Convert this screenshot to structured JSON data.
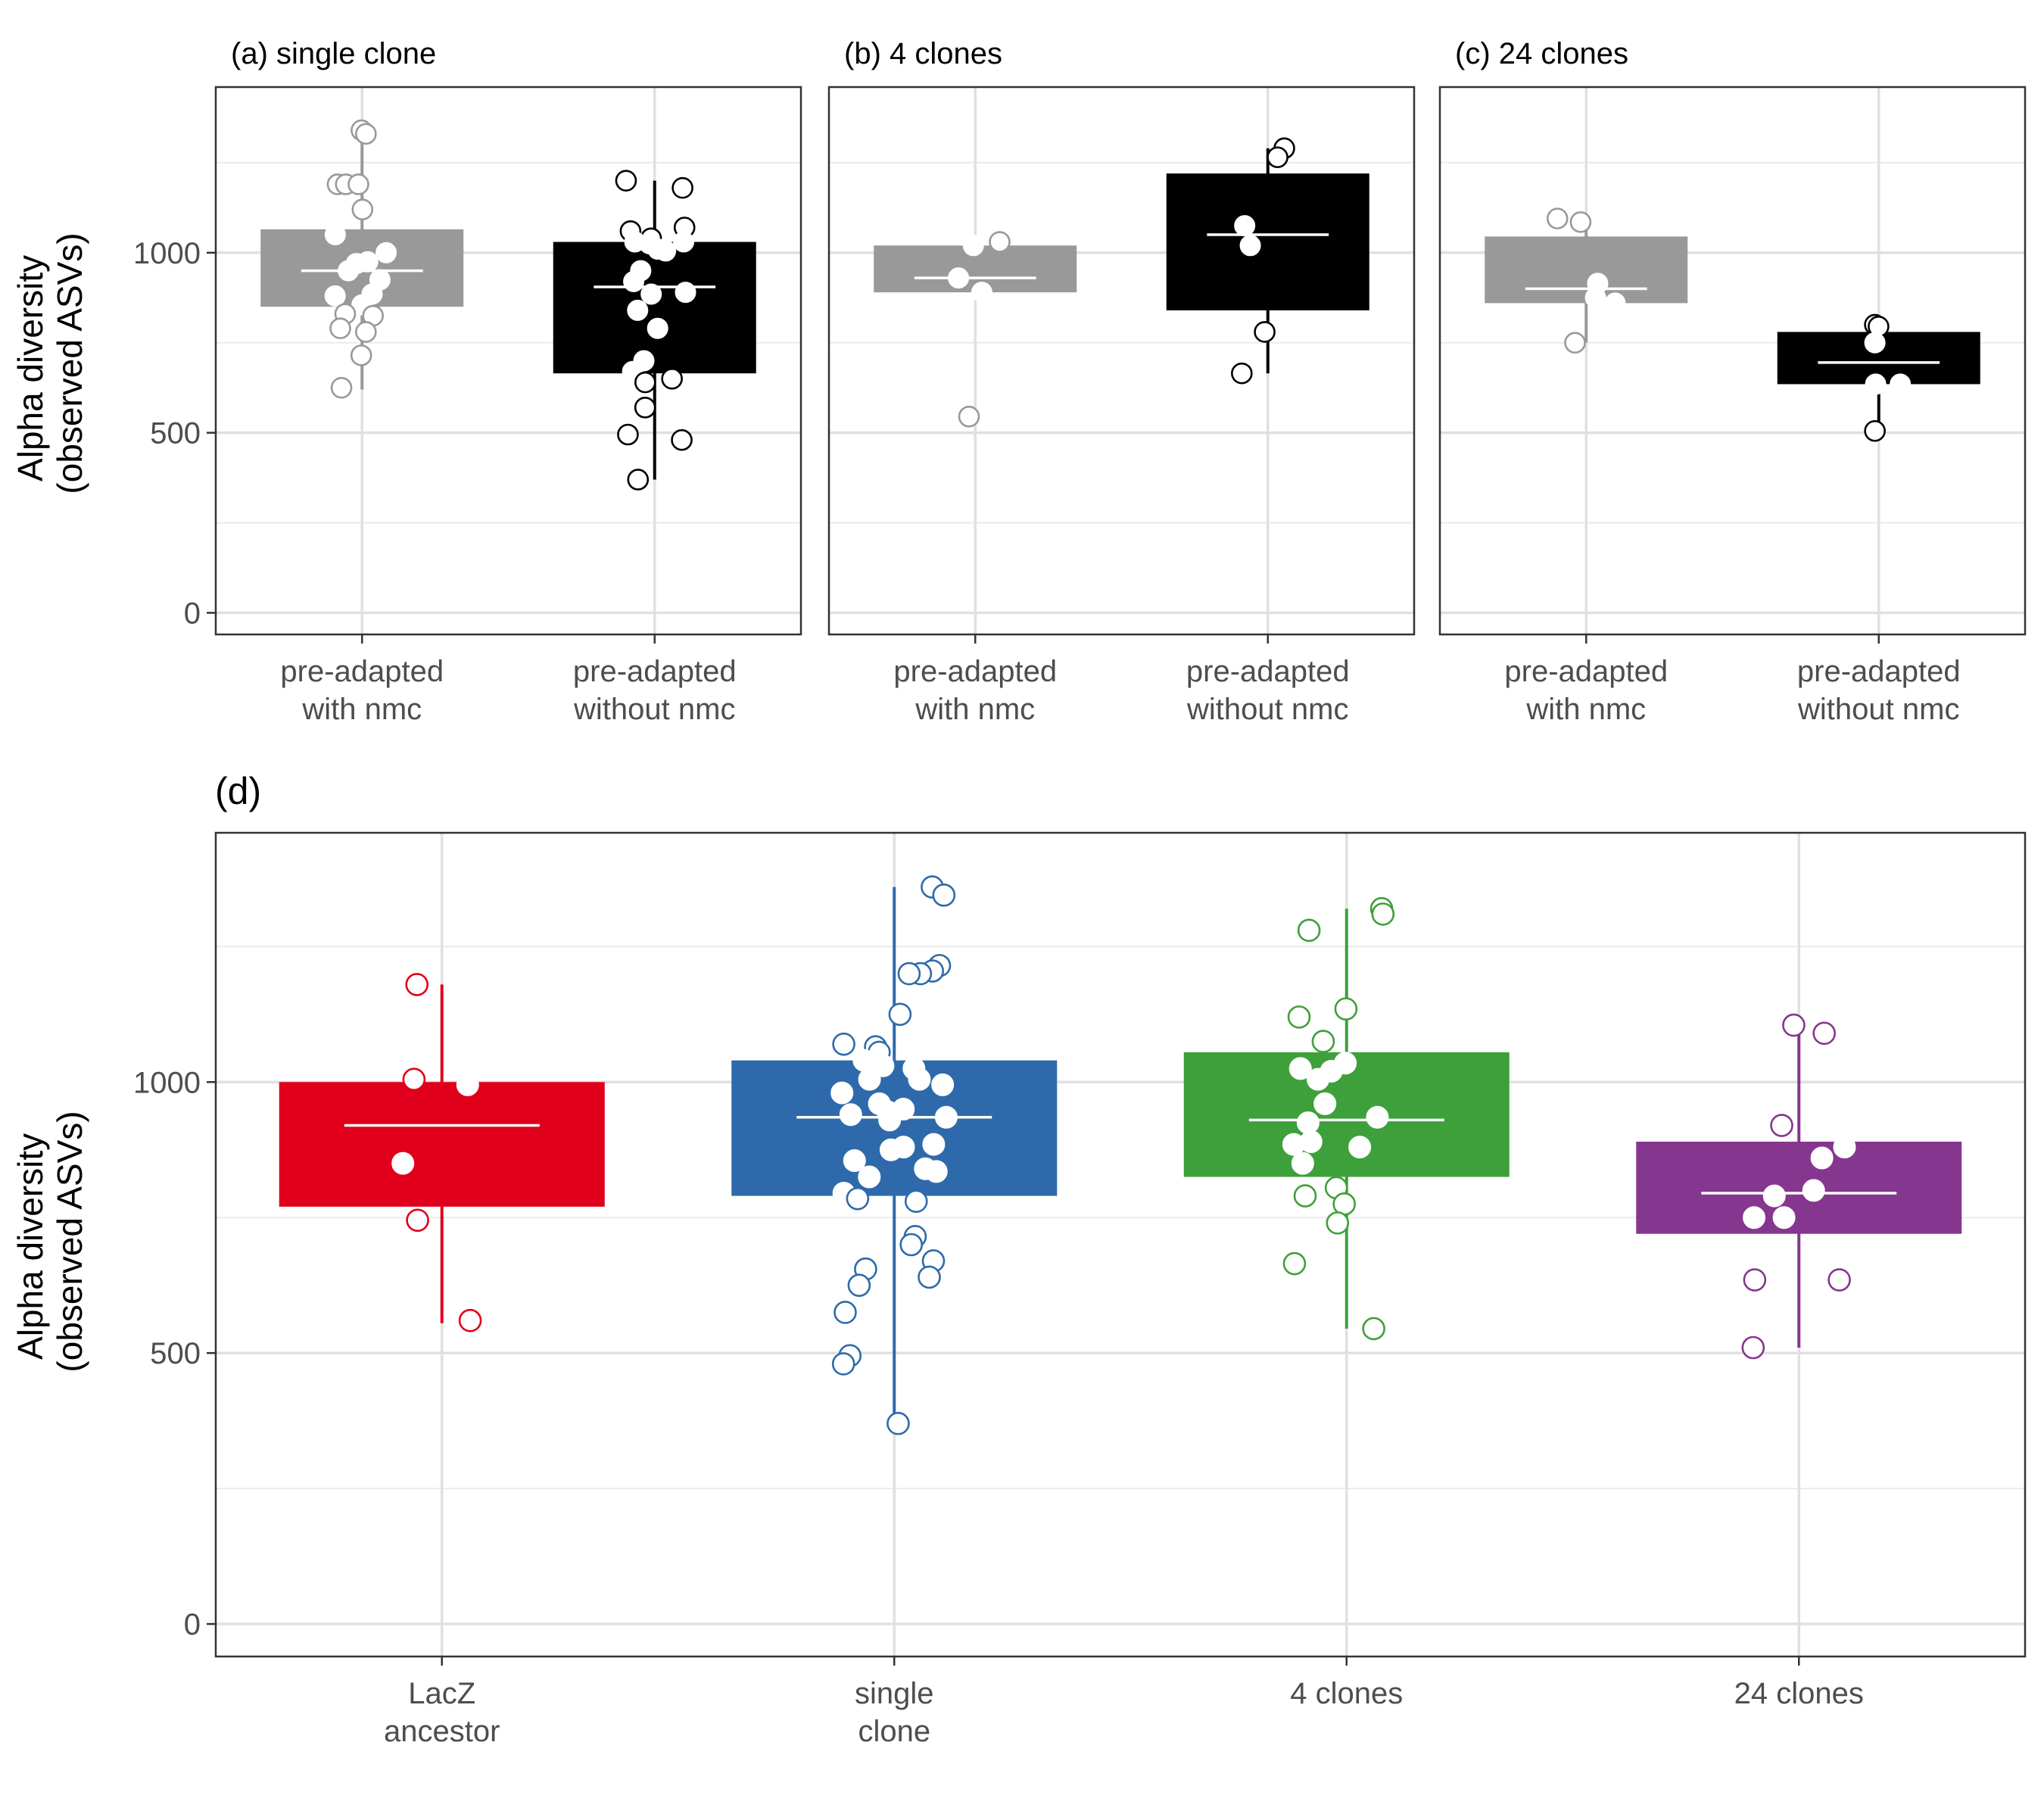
{
  "ylabel_lines": [
    "Alpha diversity",
    "(observed ASVs)"
  ],
  "chart_data": [
    {
      "type": "box",
      "title": "(a) single clone",
      "ylabel": "Alpha diversity (observed ASVs)",
      "yticks": [
        0,
        500,
        1000
      ],
      "ylim": [
        -60,
        1460
      ],
      "grid": true,
      "categories": [
        [
          "pre-adapted",
          "with nmc"
        ],
        [
          "pre-adapted",
          "without nmc"
        ]
      ],
      "groups": [
        {
          "color": "#999999",
          "q1": 850,
          "median": 950,
          "q3": 1065,
          "whisker_low": 620,
          "whisker_high": 1330,
          "points": [
            1340,
            1330,
            1190,
            1190,
            1190,
            1120,
            1050,
            1000,
            975,
            970,
            950,
            925,
            885,
            880,
            855,
            830,
            825,
            790,
            780,
            715,
            625
          ]
        },
        {
          "color": "#000000",
          "q1": 665,
          "median": 905,
          "q3": 1030,
          "whisker_low": 370,
          "whisker_high": 1200,
          "points": [
            1200,
            1180,
            1070,
            1060,
            1040,
            1030,
            1030,
            1025,
            1010,
            1005,
            950,
            920,
            890,
            885,
            840,
            790,
            700,
            670,
            650,
            640,
            570,
            495,
            480,
            370
          ]
        }
      ]
    },
    {
      "type": "box",
      "title": "(b) 4 clones",
      "yticks": [
        0,
        500,
        1000
      ],
      "ylim": [
        -60,
        1460
      ],
      "grid": true,
      "categories": [
        [
          "pre-adapted",
          "with nmc"
        ],
        [
          "pre-adapted",
          "without nmc"
        ]
      ],
      "groups": [
        {
          "color": "#999999",
          "q1": 890,
          "median": 930,
          "q3": 1020,
          "whisker_low": 890,
          "whisker_high": 1030,
          "points": [
            1030,
            1020,
            930,
            890,
            545
          ]
        },
        {
          "color": "#000000",
          "q1": 840,
          "median": 1050,
          "q3": 1220,
          "whisker_low": 665,
          "whisker_high": 1290,
          "points": [
            1290,
            1265,
            1075,
            1020,
            780,
            665
          ]
        }
      ]
    },
    {
      "type": "box",
      "title": "(c) 24 clones",
      "yticks": [
        0,
        500,
        1000
      ],
      "ylim": [
        -60,
        1460
      ],
      "grid": true,
      "categories": [
        [
          "pre-adapted",
          "with nmc"
        ],
        [
          "pre-adapted",
          "without nmc"
        ]
      ],
      "groups": [
        {
          "color": "#999999",
          "q1": 860,
          "median": 900,
          "q3": 1045,
          "whisker_low": 750,
          "whisker_high": 1095,
          "points": [
            1095,
            1085,
            915,
            875,
            860,
            750
          ]
        },
        {
          "color": "#000000",
          "q1": 635,
          "median": 695,
          "q3": 780,
          "whisker_low": 505,
          "whisker_high": 800,
          "points": [
            800,
            795,
            750,
            635,
            635,
            505
          ]
        }
      ]
    },
    {
      "type": "box",
      "title": "(d)",
      "ylabel": "Alpha diversity (observed ASVs)",
      "yticks": [
        0,
        500,
        1000
      ],
      "ylim": [
        -60,
        1460
      ],
      "grid": true,
      "categories": [
        [
          "LacZ",
          "ancestor"
        ],
        [
          "single",
          "clone"
        ],
        [
          "4 clones"
        ],
        [
          "24 clones"
        ]
      ],
      "groups": [
        {
          "color": "#E0001B",
          "q1": 770,
          "median": 920,
          "q3": 1000,
          "whisker_low": 555,
          "whisker_high": 1180,
          "points": [
            1180,
            1005,
            995,
            850,
            745,
            560
          ]
        },
        {
          "color": "#2E6AAB",
          "q1": 790,
          "median": 935,
          "q3": 1040,
          "whisker_low": 370,
          "whisker_high": 1360,
          "points": [
            1360,
            1345,
            1215,
            1205,
            1200,
            1200,
            1125,
            1070,
            1065,
            1055,
            1040,
            1030,
            1025,
            1005,
            1005,
            995,
            980,
            960,
            950,
            945,
            940,
            935,
            930,
            885,
            880,
            875,
            855,
            840,
            835,
            825,
            795,
            785,
            780,
            715,
            700,
            670,
            655,
            640,
            625,
            575,
            495,
            480,
            370
          ]
        },
        {
          "color": "#3EA03A",
          "q1": 825,
          "median": 930,
          "q3": 1055,
          "whisker_low": 545,
          "whisker_high": 1320,
          "points": [
            1320,
            1310,
            1280,
            1135,
            1120,
            1075,
            1035,
            1025,
            1020,
            1005,
            960,
            935,
            925,
            890,
            885,
            880,
            850,
            805,
            790,
            775,
            740,
            665,
            545
          ]
        },
        {
          "color": "#85368E",
          "q1": 720,
          "median": 795,
          "q3": 890,
          "whisker_low": 510,
          "whisker_high": 1100,
          "points": [
            1105,
            1090,
            920,
            880,
            860,
            800,
            790,
            750,
            750,
            635,
            635,
            510
          ]
        }
      ]
    }
  ]
}
